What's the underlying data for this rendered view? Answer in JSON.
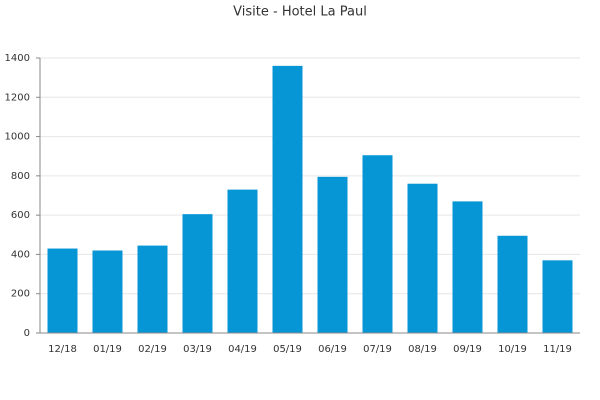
{
  "chart_data": {
    "type": "bar",
    "title": "Visite - Hotel La Paul",
    "categories": [
      "12/18",
      "01/19",
      "02/19",
      "03/19",
      "04/19",
      "05/19",
      "06/19",
      "07/19",
      "08/19",
      "09/19",
      "10/19",
      "11/19"
    ],
    "values": [
      430,
      420,
      445,
      605,
      730,
      1360,
      795,
      905,
      760,
      670,
      495,
      370
    ],
    "color": "#0796d5",
    "ylim": [
      0,
      1400
    ],
    "yticks": [
      0,
      200,
      400,
      600,
      800,
      1000,
      1200,
      1400
    ],
    "grid": true
  }
}
